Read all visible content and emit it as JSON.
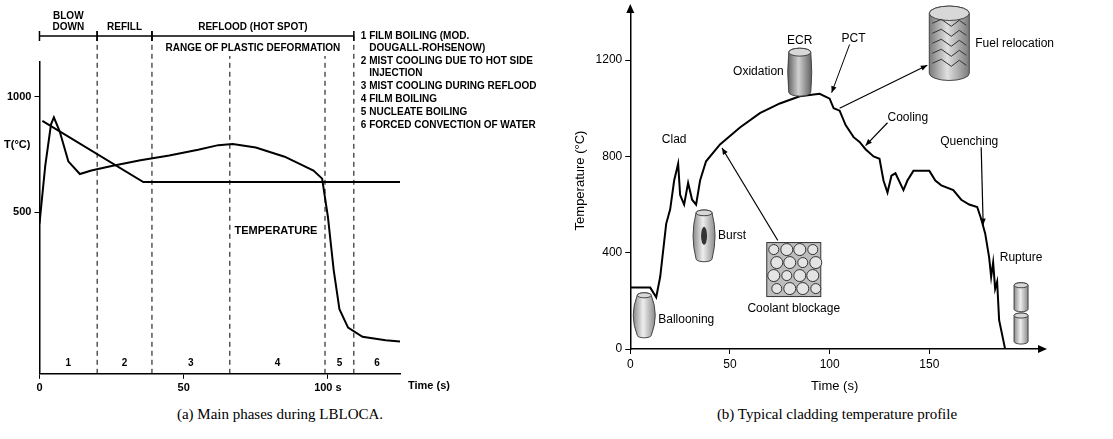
{
  "chart_data": [
    {
      "type": "line",
      "caption": "(a) Main phases during LBLOCA.",
      "x_label": "Time (s)",
      "y_label": "T(°C)",
      "xlim": [
        0,
        125
      ],
      "ylim": [
        -200,
        1150
      ],
      "xticks": [
        0,
        50,
        {
          "value": 100,
          "label": "100 s"
        }
      ],
      "yticks": [
        500,
        1000
      ],
      "grid": false,
      "series": [
        {
          "name": "TEMPERATURE",
          "color": "#000000",
          "x": [
            0,
            2,
            4,
            5,
            7,
            10,
            14,
            18,
            25,
            35,
            45,
            55,
            62,
            67,
            75,
            85,
            95,
            98,
            100,
            102,
            104,
            107,
            112,
            120,
            125
          ],
          "values": [
            450,
            700,
            880,
            910,
            850,
            720,
            665,
            680,
            700,
            725,
            745,
            770,
            790,
            795,
            780,
            740,
            680,
            645,
            480,
            250,
            80,
            0,
            -40,
            -55,
            -60
          ]
        },
        {
          "color": "#000000",
          "x": [
            1,
            36,
            125
          ],
          "values": [
            895,
            630,
            630
          ]
        }
      ],
      "stages": [
        {
          "text": "BLOW DOWN",
          "start": 0,
          "end": 20
        },
        {
          "text": "REFILL",
          "start": 20,
          "end": 39
        },
        {
          "text": "REFLOOD (HOT SPOT)",
          "start": 39,
          "end": 109,
          "subtext": "RANGE OF PLASTIC DEFORMATION"
        }
      ],
      "phase_boundaries": [
        20,
        39,
        66,
        99,
        109
      ],
      "phases": [
        {
          "label": "1",
          "text": "FILM BOILING (MOD. DOUGALL-ROHSENOW)"
        },
        {
          "label": "2",
          "text": "MIST COOLING DUE TO HOT SIDE INJECTION"
        },
        {
          "label": "3",
          "text": "MIST COOLING DURING REFLOOD"
        },
        {
          "label": "4",
          "text": "FILM BOILING"
        },
        {
          "label": "5",
          "text": "NUCLEATE BOILING"
        },
        {
          "label": "6",
          "text": "FORCED CONVECTION OF WATER"
        }
      ]
    },
    {
      "type": "line",
      "caption": "(b) Typical cladding temperature profile",
      "x_label": "Time (s)",
      "y_label": "Temperature (°C)",
      "xlim": [
        0,
        205
      ],
      "ylim": [
        0,
        1400
      ],
      "xticks": [
        0,
        50,
        100,
        150
      ],
      "yticks": [
        0,
        400,
        800,
        1200
      ],
      "grid": false,
      "series": [
        {
          "color": "#000000",
          "x": [
            0,
            5,
            10,
            13,
            15,
            18,
            20,
            22,
            24,
            25,
            27,
            29,
            31,
            33,
            35,
            38,
            45,
            55,
            65,
            75,
            85,
            95,
            100,
            102,
            105,
            108,
            112,
            115,
            118,
            122,
            125,
            127,
            129,
            131,
            133,
            137,
            139,
            142,
            150,
            153,
            156,
            162,
            166,
            170,
            174,
            176,
            178,
            180,
            181,
            182,
            183,
            184,
            185,
            187,
            188
          ],
          "values": [
            255,
            255,
            255,
            215,
            300,
            520,
            580,
            700,
            770,
            640,
            600,
            690,
            620,
            600,
            700,
            780,
            850,
            920,
            980,
            1020,
            1050,
            1060,
            1040,
            1000,
            990,
            930,
            880,
            860,
            830,
            800,
            790,
            700,
            650,
            720,
            730,
            660,
            700,
            740,
            740,
            700,
            680,
            660,
            620,
            600,
            590,
            540,
            480,
            380,
            300,
            360,
            250,
            280,
            120,
            40,
            0
          ]
        }
      ],
      "annotations": [
        "Clad",
        "Burst",
        "Ballooning",
        "Coolant blockage",
        "ECR",
        "Oxidation",
        "PCT",
        "Fuel relocation",
        "Cooling",
        "Quenching",
        "Rupture"
      ]
    }
  ]
}
